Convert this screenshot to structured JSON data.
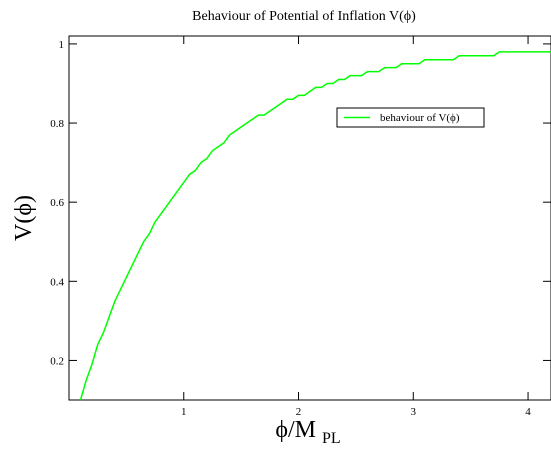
{
  "chart_data": {
    "type": "line",
    "title": "Behaviour of Potential of Inflation V(ϕ)",
    "xlabel": {
      "main": "ϕ/M",
      "subscript": "PL"
    },
    "ylabel": "V(ϕ)",
    "xlim": [
      0,
      4.2
    ],
    "ylim": [
      0.1,
      1.02
    ],
    "x_ticks": [
      {
        "value": 1,
        "label": "1"
      },
      {
        "value": 2,
        "label": "2"
      },
      {
        "value": 3,
        "label": "3"
      },
      {
        "value": 4,
        "label": "4"
      }
    ],
    "y_ticks": [
      {
        "value": 0.2,
        "label": "0.2"
      },
      {
        "value": 0.4,
        "label": "0.4"
      },
      {
        "value": 0.6,
        "label": "0.6"
      },
      {
        "value": 0.8,
        "label": "0.8"
      },
      {
        "value": 1.0,
        "label": "1"
      }
    ],
    "grid": false,
    "legend": {
      "placement": "upper-right",
      "entries": [
        {
          "label": "behaviour of V(ϕ)",
          "color": "#00ff00"
        }
      ]
    },
    "series": [
      {
        "label": "behaviour of V(ϕ)",
        "color": "#00ff00",
        "x": [
          0.1,
          0.15,
          0.2,
          0.25,
          0.3,
          0.35,
          0.4,
          0.45,
          0.5,
          0.55,
          0.6,
          0.65,
          0.7,
          0.75,
          0.8,
          0.85,
          0.9,
          0.95,
          1.0,
          1.05,
          1.1,
          1.15,
          1.2,
          1.25,
          1.3,
          1.35,
          1.4,
          1.45,
          1.5,
          1.55,
          1.6,
          1.65,
          1.7,
          1.75,
          1.8,
          1.85,
          1.9,
          1.95,
          2.0,
          2.05,
          2.1,
          2.15,
          2.2,
          2.25,
          2.3,
          2.35,
          2.4,
          2.45,
          2.5,
          2.55,
          2.6,
          2.65,
          2.7,
          2.75,
          2.8,
          2.85,
          2.9,
          2.95,
          3.0,
          3.05,
          3.1,
          3.15,
          3.2,
          3.25,
          3.3,
          3.35,
          3.4,
          3.45,
          3.5,
          3.55,
          3.6,
          3.65,
          3.7,
          3.75,
          3.8,
          3.85,
          3.9,
          3.95,
          4.0,
          4.05,
          4.1,
          4.15,
          4.2
        ],
        "y": [
          0.1,
          0.15,
          0.19,
          0.24,
          0.27,
          0.31,
          0.35,
          0.38,
          0.41,
          0.44,
          0.47,
          0.5,
          0.52,
          0.55,
          0.57,
          0.59,
          0.61,
          0.63,
          0.65,
          0.67,
          0.68,
          0.7,
          0.71,
          0.73,
          0.74,
          0.75,
          0.77,
          0.78,
          0.79,
          0.8,
          0.81,
          0.82,
          0.82,
          0.83,
          0.84,
          0.85,
          0.86,
          0.86,
          0.87,
          0.87,
          0.88,
          0.89,
          0.89,
          0.9,
          0.9,
          0.91,
          0.91,
          0.92,
          0.92,
          0.92,
          0.93,
          0.93,
          0.93,
          0.94,
          0.94,
          0.94,
          0.95,
          0.95,
          0.95,
          0.95,
          0.96,
          0.96,
          0.96,
          0.96,
          0.96,
          0.96,
          0.97,
          0.97,
          0.97,
          0.97,
          0.97,
          0.97,
          0.97,
          0.98,
          0.98,
          0.98,
          0.98,
          0.98,
          0.98,
          0.98,
          0.98,
          0.98,
          0.98
        ]
      }
    ]
  }
}
